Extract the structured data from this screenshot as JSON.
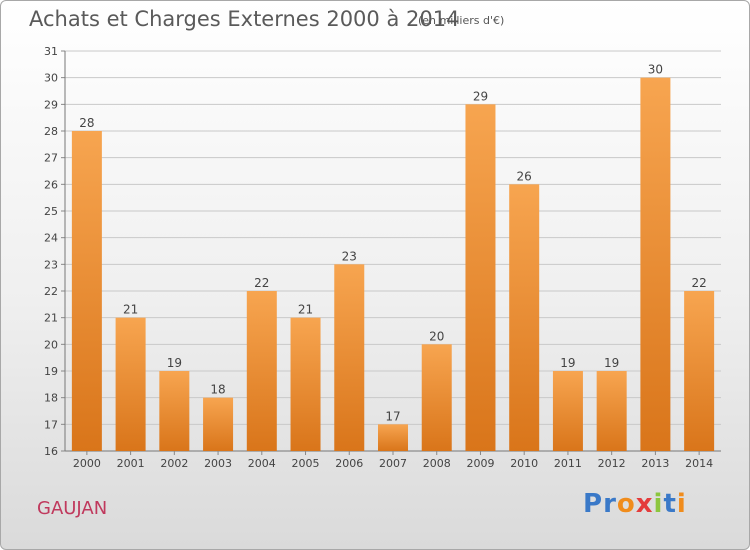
{
  "chart_data": {
    "type": "bar",
    "title": "Achats et Charges Externes 2000 à 2014",
    "subtitle": "(en milliers d'€)",
    "categories": [
      "2000",
      "2001",
      "2002",
      "2003",
      "2004",
      "2005",
      "2006",
      "2007",
      "2008",
      "2009",
      "2010",
      "2011",
      "2012",
      "2013",
      "2014"
    ],
    "values": [
      28,
      21,
      19,
      18,
      22,
      21,
      23,
      17,
      20,
      29,
      26,
      19,
      19,
      30,
      22
    ],
    "ylim": [
      16,
      31
    ],
    "yticks": [
      16,
      17,
      18,
      19,
      20,
      21,
      22,
      23,
      24,
      25,
      26,
      27,
      28,
      29,
      30,
      31
    ],
    "grid": true,
    "bar_color_top": "#f7a550",
    "bar_color_bottom": "#d9751a"
  },
  "place_name": "GAUJAN",
  "logo": {
    "text": "Proxiti",
    "letters": [
      "P",
      "r",
      "o",
      "x",
      "i",
      "t",
      "i"
    ],
    "colors": [
      "#3a79c8",
      "#3a79c8",
      "#f08c1c",
      "#e43c3c",
      "#8cc63e",
      "#3a79c8",
      "#f08c1c"
    ]
  }
}
